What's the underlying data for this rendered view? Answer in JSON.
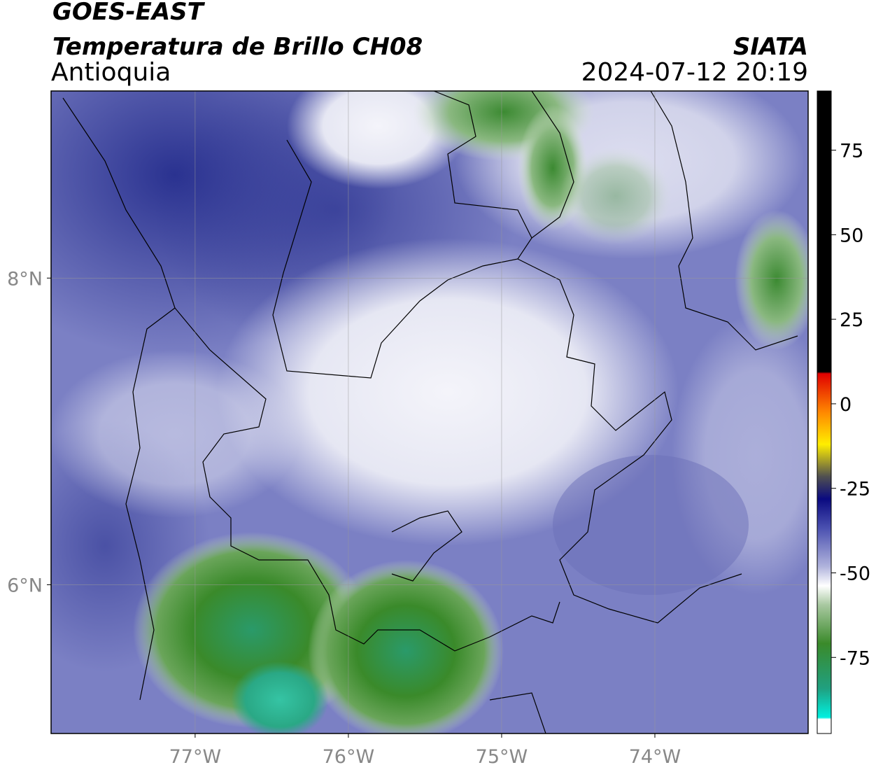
{
  "header": {
    "title": "GOES-EAST",
    "subtitle": "Temperatura de Brillo CH08",
    "region": "Antioquia",
    "source": "SIATA",
    "datetime": "2024-07-12 20:19"
  },
  "map": {
    "xlim": [
      -77.94,
      -73.0
    ],
    "ylim": [
      5.03,
      9.22
    ],
    "xticks": [
      {
        "value": -77,
        "label": "77°W"
      },
      {
        "value": -76,
        "label": "76°W"
      },
      {
        "value": -75,
        "label": "75°W"
      },
      {
        "value": -74,
        "label": "74°W"
      }
    ],
    "yticks": [
      {
        "value": 8,
        "label": "8°N"
      },
      {
        "value": 6,
        "label": "6°N"
      }
    ],
    "grid": true
  },
  "colorbar": {
    "clim": [
      -97.5,
      92.5
    ],
    "ticks": [
      75,
      50,
      25,
      0,
      -25,
      -50,
      -75
    ]
  }
}
